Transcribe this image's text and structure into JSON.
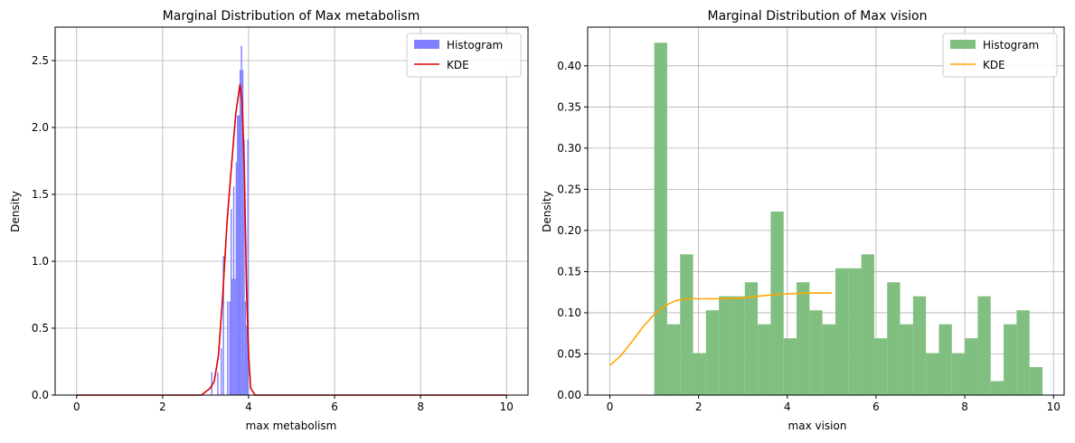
{
  "chart_data": [
    {
      "type": "bar",
      "title": "Marginal Distribution of Max metabolism",
      "xlabel": "max metabolism",
      "ylabel": "Density",
      "xlim": [
        -0.5,
        10.5
      ],
      "ylim": [
        0,
        2.75
      ],
      "xticks": [
        0,
        2,
        4,
        6,
        8,
        10
      ],
      "yticks": [
        0.0,
        0.5,
        1.0,
        1.5,
        2.0,
        2.5
      ],
      "xtick_labels": [
        "0",
        "2",
        "4",
        "6",
        "8",
        "10"
      ],
      "ytick_labels": [
        "0.0",
        "0.5",
        "1.0",
        "1.5",
        "2.0",
        "2.5"
      ],
      "grid": true,
      "legend_position": "top-right",
      "histogram": {
        "name": "Histogram",
        "color": "#8080ff",
        "bins": [
          {
            "x0": 3.13,
            "x1": 3.16,
            "h": 0.17
          },
          {
            "x0": 3.27,
            "x1": 3.3,
            "h": 0.17
          },
          {
            "x0": 3.35,
            "x1": 3.38,
            "h": 0.35
          },
          {
            "x0": 3.4,
            "x1": 3.43,
            "h": 1.04
          },
          {
            "x0": 3.5,
            "x1": 3.53,
            "h": 0.7
          },
          {
            "x0": 3.55,
            "x1": 3.58,
            "h": 0.7
          },
          {
            "x0": 3.58,
            "x1": 3.61,
            "h": 1.39
          },
          {
            "x0": 3.61,
            "x1": 3.64,
            "h": 0.87
          },
          {
            "x0": 3.64,
            "x1": 3.67,
            "h": 1.56
          },
          {
            "x0": 3.67,
            "x1": 3.7,
            "h": 0.87
          },
          {
            "x0": 3.7,
            "x1": 3.73,
            "h": 1.74
          },
          {
            "x0": 3.73,
            "x1": 3.76,
            "h": 2.09
          },
          {
            "x0": 3.76,
            "x1": 3.79,
            "h": 2.09
          },
          {
            "x0": 3.79,
            "x1": 3.82,
            "h": 2.43
          },
          {
            "x0": 3.82,
            "x1": 3.85,
            "h": 2.61
          },
          {
            "x0": 3.85,
            "x1": 3.88,
            "h": 2.43
          },
          {
            "x0": 3.88,
            "x1": 3.91,
            "h": 1.91
          },
          {
            "x0": 3.91,
            "x1": 3.94,
            "h": 0.7
          },
          {
            "x0": 3.94,
            "x1": 3.97,
            "h": 0.52
          },
          {
            "x0": 3.97,
            "x1": 4.0,
            "h": 1.91
          }
        ]
      },
      "kde": {
        "name": "KDE",
        "color": "#dd0000",
        "points": [
          [
            0,
            0
          ],
          [
            2.9,
            0
          ],
          [
            3.1,
            0.05
          ],
          [
            3.2,
            0.1
          ],
          [
            3.3,
            0.3
          ],
          [
            3.4,
            0.75
          ],
          [
            3.5,
            1.3
          ],
          [
            3.6,
            1.7
          ],
          [
            3.7,
            2.1
          ],
          [
            3.8,
            2.32
          ],
          [
            3.85,
            2.2
          ],
          [
            3.9,
            1.7
          ],
          [
            3.95,
            0.8
          ],
          [
            4.0,
            0.3
          ],
          [
            4.05,
            0.05
          ],
          [
            4.15,
            0
          ],
          [
            10,
            0
          ]
        ]
      }
    },
    {
      "type": "bar",
      "title": "Marginal Distribution of Max vision",
      "xlabel": "max vision",
      "ylabel": "Density",
      "xlim": [
        -0.5,
        10.24
      ],
      "ylim": [
        0,
        0.447
      ],
      "xticks": [
        0,
        2,
        4,
        6,
        8,
        10
      ],
      "yticks": [
        0.0,
        0.05,
        0.1,
        0.15,
        0.2,
        0.25,
        0.3,
        0.35,
        0.4
      ],
      "xtick_labels": [
        "0",
        "2",
        "4",
        "6",
        "8",
        "10"
      ],
      "ytick_labels": [
        "0.00",
        "0.05",
        "0.10",
        "0.15",
        "0.20",
        "0.25",
        "0.30",
        "0.35",
        "0.40"
      ],
      "grid": true,
      "legend_position": "top-right",
      "histogram": {
        "name": "Histogram",
        "color": "#80bf80",
        "bin_start": 1.0,
        "bin_width": 0.2917,
        "heights": [
          0.428,
          0.086,
          0.171,
          0.051,
          0.103,
          0.12,
          0.12,
          0.137,
          0.086,
          0.223,
          0.069,
          0.137,
          0.103,
          0.086,
          0.154,
          0.154,
          0.171,
          0.069,
          0.137,
          0.086,
          0.12,
          0.051,
          0.086,
          0.051,
          0.069,
          0.12,
          0.017,
          0.086,
          0.103,
          0.034
        ]
      },
      "kde": {
        "name": "KDE",
        "color": "#ffa500",
        "points": [
          [
            0,
            0.036
          ],
          [
            0.25,
            0.048
          ],
          [
            0.5,
            0.065
          ],
          [
            0.75,
            0.083
          ],
          [
            1.0,
            0.098
          ],
          [
            1.25,
            0.109
          ],
          [
            1.5,
            0.115
          ],
          [
            1.75,
            0.117
          ],
          [
            2.0,
            0.117
          ],
          [
            2.5,
            0.117
          ],
          [
            3.0,
            0.118
          ],
          [
            3.5,
            0.121
          ],
          [
            4.0,
            0.123
          ],
          [
            4.5,
            0.124
          ],
          [
            5.0,
            0.124
          ]
        ]
      }
    }
  ]
}
